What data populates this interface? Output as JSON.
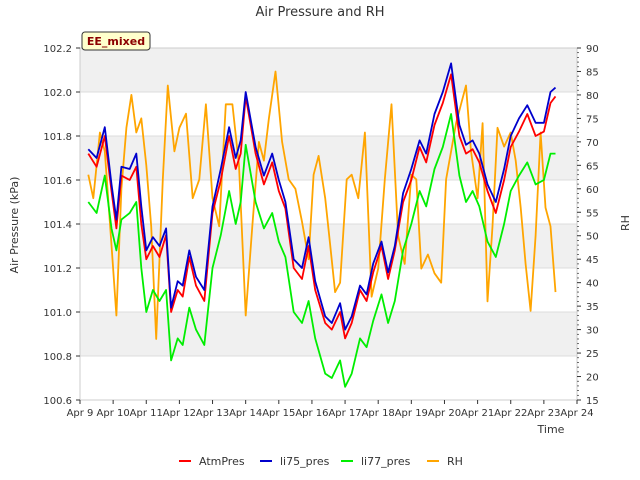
{
  "chart_data": {
    "type": "line",
    "title": "Air Pressure and RH",
    "xlabel": "Time",
    "ylabel": "Air Pressure (kPa)",
    "y2label": "RH",
    "badge": "EE_mixed",
    "x_ticks": [
      "Apr 9",
      "Apr 10",
      "Apr 11",
      "Apr 12",
      "Apr 13",
      "Apr 14",
      "Apr 15",
      "Apr 16",
      "Apr 17",
      "Apr 18",
      "Apr 19",
      "Apr 20",
      "Apr 21",
      "Apr 22",
      "Apr 23",
      "Apr 24"
    ],
    "xlim": [
      0,
      15
    ],
    "ylim": [
      100.6,
      102.2
    ],
    "y_ticks": [
      "100.6",
      "100.8",
      "101.0",
      "101.2",
      "101.4",
      "101.6",
      "101.8",
      "102.0",
      "102.2"
    ],
    "y2lim": [
      15,
      90
    ],
    "y2_ticks": [
      "15",
      "20",
      "25",
      "30",
      "35",
      "40",
      "45",
      "50",
      "55",
      "60",
      "65",
      "70",
      "75",
      "80",
      "85",
      "90"
    ],
    "grid": true,
    "legend_position": "bottom-center",
    "series": [
      {
        "name": "AtmPres",
        "axis": "left",
        "color": "#ff0000",
        "x": [
          0.25,
          0.5,
          0.75,
          0.95,
          1.1,
          1.25,
          1.5,
          1.7,
          1.85,
          2.0,
          2.2,
          2.4,
          2.6,
          2.75,
          2.95,
          3.1,
          3.3,
          3.5,
          3.75,
          4.0,
          4.25,
          4.5,
          4.7,
          4.85,
          5.0,
          5.3,
          5.55,
          5.8,
          6.0,
          6.2,
          6.45,
          6.7,
          6.9,
          7.1,
          7.4,
          7.6,
          7.85,
          8.0,
          8.2,
          8.45,
          8.65,
          8.85,
          9.1,
          9.3,
          9.5,
          9.75,
          10.0,
          10.25,
          10.45,
          10.7,
          10.95,
          11.2,
          11.45,
          11.65,
          11.85,
          12.05,
          12.3,
          12.55,
          12.8,
          13.0,
          13.25,
          13.5,
          13.75,
          14.0,
          14.2,
          14.35
        ],
        "y": [
          101.72,
          101.66,
          101.8,
          101.55,
          101.38,
          101.62,
          101.6,
          101.66,
          101.4,
          101.24,
          101.3,
          101.25,
          101.35,
          101.0,
          101.1,
          101.07,
          101.25,
          101.12,
          101.05,
          101.45,
          101.6,
          101.8,
          101.65,
          101.72,
          101.98,
          101.72,
          101.58,
          101.68,
          101.55,
          101.47,
          101.2,
          101.15,
          101.3,
          101.1,
          100.95,
          100.92,
          101.0,
          100.88,
          100.95,
          101.1,
          101.05,
          101.18,
          101.3,
          101.15,
          101.28,
          101.5,
          101.6,
          101.75,
          101.68,
          101.85,
          101.95,
          102.08,
          101.8,
          101.72,
          101.74,
          101.68,
          101.55,
          101.45,
          101.6,
          101.75,
          101.82,
          101.9,
          101.8,
          101.82,
          101.95,
          101.98
        ]
      },
      {
        "name": "li75_pres",
        "axis": "left",
        "color": "#0000cc",
        "x": [
          0.25,
          0.5,
          0.75,
          0.95,
          1.1,
          1.25,
          1.5,
          1.7,
          1.85,
          2.0,
          2.2,
          2.4,
          2.6,
          2.75,
          2.95,
          3.1,
          3.3,
          3.5,
          3.75,
          4.0,
          4.25,
          4.5,
          4.7,
          4.85,
          5.0,
          5.3,
          5.55,
          5.8,
          6.0,
          6.2,
          6.45,
          6.7,
          6.9,
          7.1,
          7.4,
          7.6,
          7.85,
          8.0,
          8.2,
          8.45,
          8.65,
          8.85,
          9.1,
          9.3,
          9.5,
          9.75,
          10.0,
          10.25,
          10.45,
          10.7,
          10.95,
          11.2,
          11.45,
          11.65,
          11.85,
          12.05,
          12.3,
          12.55,
          12.8,
          13.0,
          13.25,
          13.5,
          13.75,
          14.0,
          14.2,
          14.35
        ],
        "y": [
          101.74,
          101.7,
          101.84,
          101.58,
          101.42,
          101.66,
          101.65,
          101.72,
          101.48,
          101.28,
          101.34,
          101.3,
          101.38,
          101.02,
          101.14,
          101.12,
          101.28,
          101.16,
          101.1,
          101.48,
          101.65,
          101.84,
          101.7,
          101.78,
          102.0,
          101.75,
          101.62,
          101.72,
          101.6,
          101.5,
          101.24,
          101.2,
          101.34,
          101.14,
          100.98,
          100.95,
          101.04,
          100.92,
          100.98,
          101.12,
          101.08,
          101.22,
          101.32,
          101.18,
          101.3,
          101.54,
          101.65,
          101.78,
          101.72,
          101.9,
          102.0,
          102.13,
          101.85,
          101.76,
          101.78,
          101.72,
          101.58,
          101.5,
          101.65,
          101.8,
          101.88,
          101.94,
          101.86,
          101.86,
          102.0,
          102.02
        ]
      },
      {
        "name": "li77_pres",
        "axis": "left",
        "color": "#00ee00",
        "x": [
          0.25,
          0.5,
          0.75,
          0.95,
          1.1,
          1.25,
          1.5,
          1.7,
          1.85,
          2.0,
          2.2,
          2.4,
          2.6,
          2.75,
          2.95,
          3.1,
          3.3,
          3.5,
          3.75,
          4.0,
          4.25,
          4.5,
          4.7,
          4.85,
          5.0,
          5.3,
          5.55,
          5.8,
          6.0,
          6.2,
          6.45,
          6.7,
          6.9,
          7.1,
          7.4,
          7.6,
          7.85,
          8.0,
          8.2,
          8.45,
          8.65,
          8.85,
          9.1,
          9.3,
          9.5,
          9.75,
          10.0,
          10.25,
          10.45,
          10.7,
          10.95,
          11.2,
          11.45,
          11.65,
          11.85,
          12.05,
          12.3,
          12.55,
          12.8,
          13.0,
          13.25,
          13.5,
          13.75,
          14.0,
          14.2,
          14.35
        ],
        "y": [
          101.5,
          101.45,
          101.62,
          101.38,
          101.28,
          101.42,
          101.45,
          101.5,
          101.2,
          101.0,
          101.1,
          101.05,
          101.1,
          100.78,
          100.88,
          100.85,
          101.02,
          100.92,
          100.85,
          101.2,
          101.35,
          101.55,
          101.4,
          101.5,
          101.76,
          101.5,
          101.38,
          101.45,
          101.32,
          101.25,
          101.0,
          100.95,
          101.05,
          100.88,
          100.72,
          100.7,
          100.78,
          100.66,
          100.72,
          100.88,
          100.84,
          100.96,
          101.08,
          100.95,
          101.05,
          101.28,
          101.4,
          101.55,
          101.48,
          101.65,
          101.75,
          101.9,
          101.62,
          101.5,
          101.55,
          101.48,
          101.32,
          101.25,
          101.4,
          101.55,
          101.62,
          101.68,
          101.58,
          101.6,
          101.72,
          101.72
        ]
      },
      {
        "name": "RH",
        "axis": "right",
        "color": "#ffa500",
        "x": [
          0.25,
          0.4,
          0.6,
          0.75,
          0.95,
          1.1,
          1.25,
          1.4,
          1.55,
          1.7,
          1.85,
          2.0,
          2.15,
          2.3,
          2.5,
          2.65,
          2.85,
          3.0,
          3.2,
          3.4,
          3.6,
          3.8,
          4.0,
          4.2,
          4.4,
          4.6,
          4.8,
          5.0,
          5.2,
          5.4,
          5.55,
          5.7,
          5.9,
          6.1,
          6.3,
          6.5,
          6.7,
          6.9,
          7.05,
          7.2,
          7.4,
          7.55,
          7.7,
          7.85,
          8.05,
          8.2,
          8.4,
          8.6,
          8.8,
          9.0,
          9.2,
          9.4,
          9.6,
          9.8,
          10.0,
          10.15,
          10.3,
          10.5,
          10.7,
          10.9,
          11.05,
          11.2,
          11.35,
          11.5,
          11.65,
          11.8,
          12.0,
          12.15,
          12.3,
          12.45,
          12.6,
          12.8,
          13.0,
          13.15,
          13.3,
          13.45,
          13.6,
          13.75,
          13.9,
          14.05,
          14.2,
          14.35
        ],
        "y": [
          63,
          58,
          72,
          68,
          48,
          33,
          60,
          73,
          80,
          72,
          75,
          65,
          52,
          28,
          62,
          82,
          68,
          73,
          76,
          58,
          62,
          78,
          58,
          52,
          78,
          78,
          65,
          33,
          52,
          70,
          66,
          75,
          85,
          70,
          62,
          60,
          53,
          45,
          63,
          67,
          58,
          48,
          38,
          40,
          62,
          63,
          58,
          72,
          37,
          43,
          62,
          78,
          50,
          44,
          63,
          62,
          43,
          46,
          42,
          40,
          62,
          68,
          74,
          78,
          82,
          68,
          58,
          74,
          36,
          52,
          73,
          69,
          72,
          66,
          56,
          44,
          34,
          50,
          72,
          56,
          52,
          38
        ]
      }
    ]
  },
  "legend": {
    "items": [
      {
        "label": "AtmPres",
        "color": "#ff0000"
      },
      {
        "label": "li75_pres",
        "color": "#0000cc"
      },
      {
        "label": "li77_pres",
        "color": "#00ee00"
      },
      {
        "label": "RH",
        "color": "#ffa500"
      }
    ]
  }
}
